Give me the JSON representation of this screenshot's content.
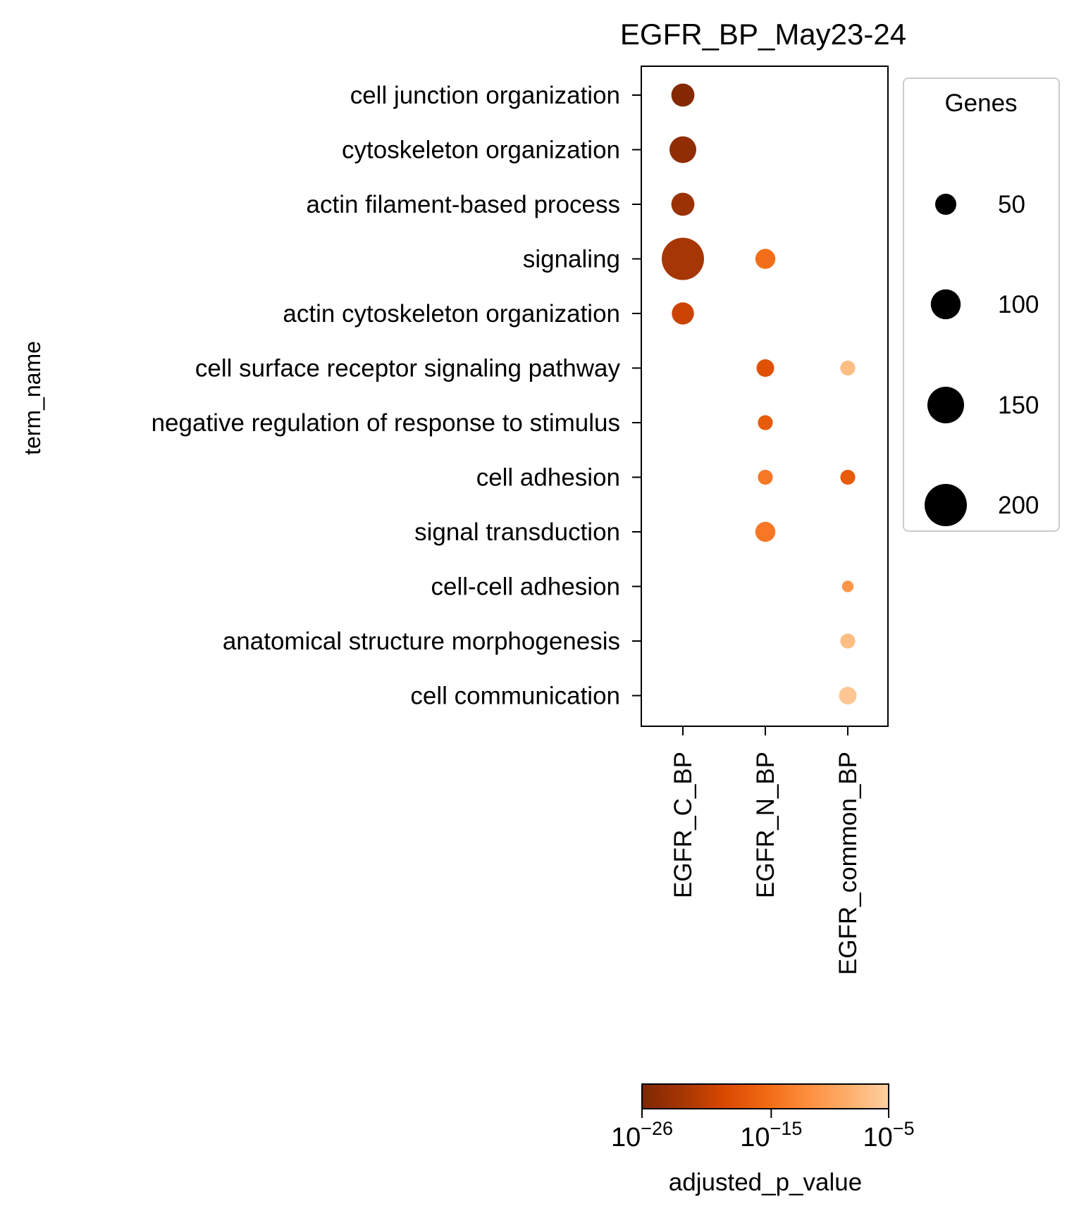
{
  "chart_data": {
    "type": "scatter",
    "title": "EGFR_BP_May23-24",
    "ylabel": "term_name",
    "xlabel": "",
    "x_categories": [
      "EGFR_C_BP",
      "EGFR_N_BP",
      "EGFR_common_BP"
    ],
    "y_categories": [
      "cell junction organization",
      "cytoskeleton organization",
      "actin filament-based process",
      "signaling",
      "actin cytoskeleton organization",
      "cell surface receptor signaling pathway",
      "negative regulation of response to stimulus",
      "cell adhesion",
      "signal transduction",
      "cell-cell adhesion",
      "anatomical structure morphogenesis",
      "cell communication"
    ],
    "points": [
      {
        "x": "EGFR_C_BP",
        "y": "cell junction organization",
        "genes": 60,
        "neg_log10_p": 25.5
      },
      {
        "x": "EGFR_C_BP",
        "y": "cytoskeleton organization",
        "genes": 80,
        "neg_log10_p": 24.5
      },
      {
        "x": "EGFR_C_BP",
        "y": "actin filament-based process",
        "genes": 60,
        "neg_log10_p": 23.5
      },
      {
        "x": "EGFR_C_BP",
        "y": "signaling",
        "genes": 200,
        "neg_log10_p": 22.5
      },
      {
        "x": "EGFR_C_BP",
        "y": "actin cytoskeleton organization",
        "genes": 55,
        "neg_log10_p": 20
      },
      {
        "x": "EGFR_N_BP",
        "y": "signaling",
        "genes": 45,
        "neg_log10_p": 15
      },
      {
        "x": "EGFR_N_BP",
        "y": "cell surface receptor signaling pathway",
        "genes": 35,
        "neg_log10_p": 18
      },
      {
        "x": "EGFR_N_BP",
        "y": "negative regulation of response to stimulus",
        "genes": 25,
        "neg_log10_p": 17
      },
      {
        "x": "EGFR_N_BP",
        "y": "cell adhesion",
        "genes": 25,
        "neg_log10_p": 14
      },
      {
        "x": "EGFR_N_BP",
        "y": "signal transduction",
        "genes": 45,
        "neg_log10_p": 14
      },
      {
        "x": "EGFR_common_BP",
        "y": "cell surface receptor signaling pathway",
        "genes": 25,
        "neg_log10_p": 7
      },
      {
        "x": "EGFR_common_BP",
        "y": "cell adhesion",
        "genes": 25,
        "neg_log10_p": 17
      },
      {
        "x": "EGFR_common_BP",
        "y": "cell-cell adhesion",
        "genes": 15,
        "neg_log10_p": 11
      },
      {
        "x": "EGFR_common_BP",
        "y": "anatomical structure morphogenesis",
        "genes": 25,
        "neg_log10_p": 7
      },
      {
        "x": "EGFR_common_BP",
        "y": "cell communication",
        "genes": 35,
        "neg_log10_p": 6
      }
    ],
    "size_legend": {
      "title": "Genes",
      "values": [
        50,
        100,
        150,
        200
      ],
      "labels": [
        "50",
        "100",
        "150",
        "200"
      ],
      "placement": "right"
    },
    "colorbar": {
      "label": "adjusted_p_value",
      "scale": "log",
      "range_neg_log10": [
        26,
        5
      ],
      "ticks": [
        {
          "base": "10",
          "exp": "−26",
          "neg_log10": 26
        },
        {
          "base": "10",
          "exp": "−15",
          "neg_log10": 15
        },
        {
          "base": "10",
          "exp": "−5",
          "neg_log10": 5
        }
      ],
      "colors": [
        "#7f2704",
        "#a63603",
        "#d94801",
        "#f16913",
        "#fd8d3c",
        "#fdae6b",
        "#fdd0a2"
      ]
    },
    "grid": false
  }
}
